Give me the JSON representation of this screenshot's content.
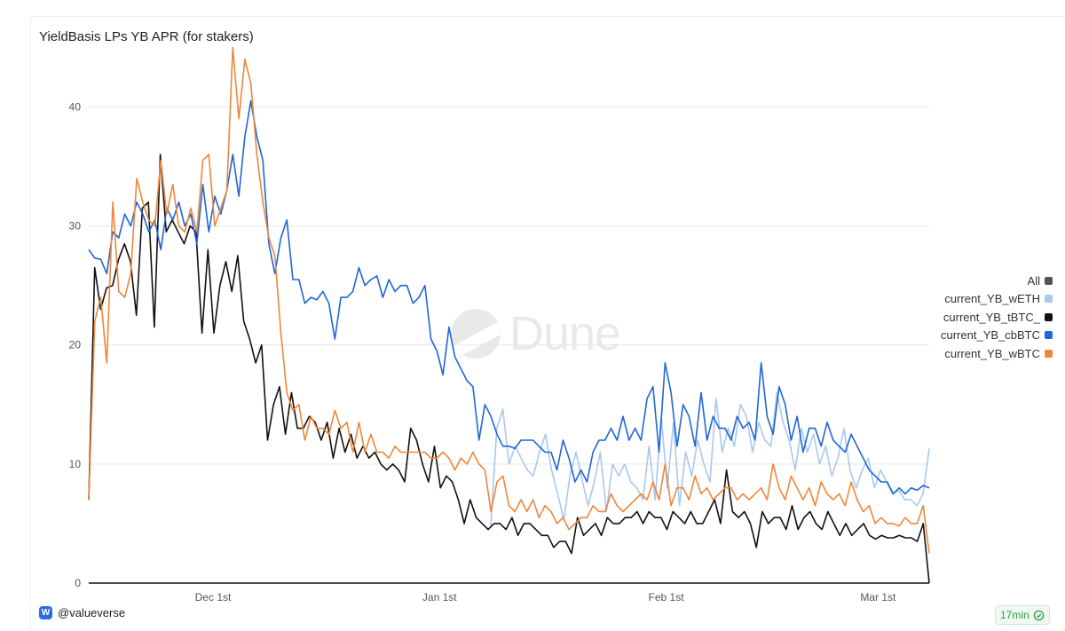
{
  "chart_data": {
    "type": "line",
    "title": "YieldBasis LPs YB APR (for stakers)",
    "xlabel": "",
    "ylabel": "",
    "ylim": [
      0,
      46
    ],
    "yticks": [
      0,
      10,
      20,
      30,
      40
    ],
    "x_start_day": 0,
    "x_end_day": 115,
    "xticks": [
      {
        "day": 17,
        "label": "Dec 1st"
      },
      {
        "day": 48,
        "label": "Jan 1st"
      },
      {
        "day": 79,
        "label": "Feb 1st"
      },
      {
        "day": 108,
        "label": "Mar 1st"
      }
    ],
    "grid": "horizontal",
    "legend_position": "right",
    "legend_all_label": "All",
    "series": [
      {
        "name": "current_YB_wETH",
        "color": "#a8c8f0",
        "start_day": 55,
        "values": [
          4.7,
          13,
          14.6,
          10,
          11.5,
          10.5,
          9.5,
          9,
          11,
          12.5,
          9.5,
          7.5,
          5.3,
          9,
          11,
          8.7,
          6.5,
          8.5,
          11,
          6,
          10,
          9,
          10,
          8.5,
          8,
          7,
          11.5,
          7,
          14,
          8,
          13.5,
          6.5,
          11,
          9,
          12,
          10,
          8.5,
          15.5,
          11,
          13,
          11.5,
          15,
          14,
          11,
          13.5,
          12,
          11.5,
          16,
          13.5,
          12,
          9.5,
          13,
          11,
          12.5,
          10,
          11.5,
          9,
          10.5,
          13,
          9.5,
          8,
          9.5,
          10.5,
          8,
          9.5,
          8.5,
          7.5,
          7.8,
          7,
          7,
          6.5,
          7.5,
          11.3
        ]
      },
      {
        "name": "current_YB_tBTC_",
        "color": "#111111",
        "start_day": 0,
        "values": [
          7,
          26.5,
          23,
          24.8,
          25,
          27.2,
          28.5,
          27,
          22.5,
          31.5,
          32,
          21.5,
          36,
          29.5,
          30.5,
          29.5,
          28.5,
          30,
          29.5,
          21,
          28,
          21,
          25,
          27,
          24.5,
          27.5,
          22,
          20.5,
          18.5,
          20,
          12,
          15,
          16.5,
          12.5,
          16,
          13,
          13,
          14,
          13.5,
          12,
          13.5,
          10.5,
          13,
          11,
          12.5,
          10.5,
          11.5,
          10.5,
          11,
          10,
          9.5,
          10,
          9.5,
          8.5,
          13,
          12,
          10,
          8.5,
          11.5,
          8,
          9,
          8.5,
          7,
          5,
          7,
          5.5,
          5,
          4.5,
          5,
          5,
          4.5,
          5.5,
          4,
          5,
          5,
          4.5,
          4,
          4,
          3,
          3.5,
          3.5,
          2.5,
          5.5,
          4,
          4.5,
          5,
          4,
          5.5,
          5,
          5,
          5.5,
          5.5,
          6,
          5,
          6,
          5.5,
          5.5,
          4.5,
          6,
          5.5,
          5,
          6,
          5,
          5,
          6,
          7,
          5,
          9.5,
          6,
          5.5,
          6,
          5,
          3,
          6,
          5,
          5.5,
          5.5,
          4.5,
          6.5,
          4.5,
          5.5,
          6,
          5,
          4.5,
          6,
          5,
          4,
          5,
          4,
          4.5,
          5,
          4,
          3.7,
          4,
          3.8,
          3.8,
          4,
          3.8,
          3.8,
          3.5,
          5,
          0
        ]
      },
      {
        "name": "current_YB_cbBTC",
        "color": "#1f66d6",
        "start_day": 0,
        "values": [
          28,
          27.3,
          27.2,
          26,
          29.5,
          29,
          31,
          30,
          32,
          31,
          29.5,
          30.5,
          28,
          31.5,
          30.5,
          32,
          30,
          31,
          28.5,
          33.5,
          29.5,
          32.5,
          31,
          33,
          36,
          32.5,
          37.5,
          40.5,
          37.5,
          35.5,
          28.5,
          26,
          29,
          30.5,
          25.5,
          25.5,
          23.5,
          24,
          23.8,
          24.5,
          23.5,
          20.5,
          24,
          24,
          24.5,
          26.5,
          25,
          25.5,
          25.8,
          24,
          25.5,
          24.5,
          25,
          25,
          23.5,
          24,
          25,
          20.5,
          19.5,
          17.5,
          21.5,
          19,
          18,
          17,
          16.5,
          12,
          15,
          14,
          12.5,
          11.5,
          11.5,
          11.3,
          12,
          12,
          12,
          11.5,
          11,
          11,
          9.5,
          12,
          10.5,
          8.5,
          9.5,
          8.5,
          11,
          12,
          12,
          13,
          12,
          14,
          12,
          13,
          12,
          15.5,
          16.5,
          11,
          18.5,
          16,
          11.5,
          15,
          14,
          11.5,
          16,
          12,
          14,
          13,
          13,
          12,
          14,
          13,
          13.5,
          12,
          18.5,
          14,
          12.5,
          16.5,
          15,
          12,
          14,
          11,
          13,
          13,
          11.5,
          13.5,
          12,
          11.5,
          11,
          12.5,
          11.5,
          10.5,
          9.5,
          9,
          8.5,
          8.5,
          7.5,
          8,
          7.5,
          8,
          7.8,
          8.2,
          8
        ]
      },
      {
        "name": "current_YB_wBTC",
        "color": "#f0863a",
        "start_day": 0,
        "values": [
          7,
          22,
          24,
          18.5,
          32,
          24.5,
          24,
          26,
          34,
          32,
          30.5,
          30,
          35.5,
          31,
          33.5,
          30,
          29.5,
          31.5,
          29.5,
          35.5,
          36,
          30,
          31.5,
          33,
          45,
          39,
          44,
          42,
          36,
          32,
          29,
          27.5,
          21,
          16,
          14.5,
          15,
          12,
          14,
          13,
          13,
          12.5,
          14.5,
          13,
          13.5,
          11,
          13.5,
          11,
          12.5,
          11,
          11,
          10.5,
          11.5,
          11,
          11,
          11,
          11,
          11,
          10.5,
          10.5,
          11,
          10.5,
          9.5,
          10.5,
          10,
          11,
          10,
          9.5,
          6,
          8.5,
          9,
          6.5,
          6,
          7,
          6,
          7,
          5.5,
          6.5,
          6,
          5,
          5.5,
          4.5,
          5,
          5.5,
          5.5,
          6.5,
          6,
          6,
          7.5,
          6.5,
          6,
          6.5,
          7,
          7.5,
          7,
          8.5,
          7,
          10,
          6.5,
          8,
          8,
          7,
          9,
          7.5,
          8,
          7,
          7.5,
          8,
          8,
          7,
          7.5,
          7,
          7.5,
          8,
          7,
          10,
          8,
          7,
          9,
          8,
          7,
          8,
          6.5,
          8.5,
          7.5,
          7,
          7.5,
          6.5,
          8.5,
          7,
          6,
          6.5,
          5,
          5.5,
          5,
          5,
          4.8,
          5.5,
          5,
          5,
          6.5,
          2.5
        ]
      }
    ]
  },
  "watermark": "Dune",
  "footer": {
    "handle": "@valueverse",
    "refresh": "17min"
  }
}
